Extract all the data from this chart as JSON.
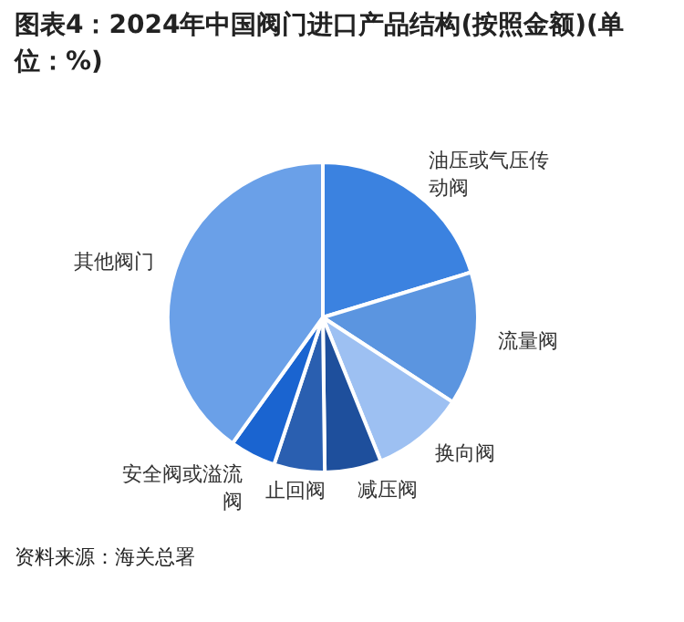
{
  "chart_data": {
    "type": "pie",
    "title": "图表4：2024年中国阀门进口产品结构(按照金额)(单位：%)",
    "categories": [
      "油压或气压传动阀",
      "流量阀",
      "换向阀",
      "减压阀",
      "止回阀",
      "安全阀或溢流阀",
      "其他阀门"
    ],
    "values": [
      20.3,
      13.9,
      9.7,
      5.9,
      5.3,
      4.8,
      40.1
    ],
    "colors": [
      "#3b82e0",
      "#5b95e0",
      "#9dc0f2",
      "#1e4f9c",
      "#2a5fb0",
      "#1a64d0",
      "#6aa0e8"
    ],
    "legend": false,
    "annotations": [
      "资料来源：海关总署"
    ]
  }
}
